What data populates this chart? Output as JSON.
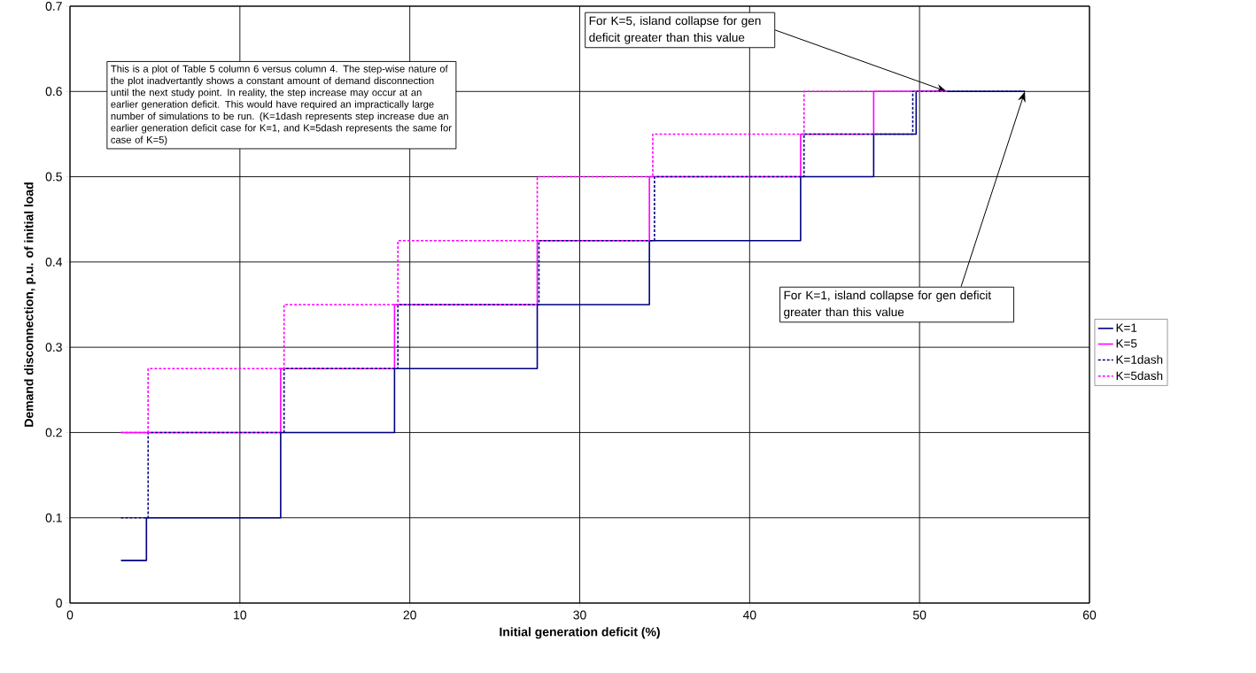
{
  "chart_data": {
    "type": "step",
    "xlabel": "Initial generation deficit (%)",
    "ylabel": "Demand disconnection, p.u. of initial load",
    "xlim": [
      0,
      60
    ],
    "ylim": [
      0,
      0.7
    ],
    "xticks": [
      0,
      10,
      20,
      30,
      40,
      50,
      60
    ],
    "yticks": [
      0,
      0.1,
      0.2,
      0.3,
      0.4,
      0.5,
      0.6,
      0.7
    ],
    "grid": true,
    "legend": "right",
    "series": [
      {
        "name": "K=1",
        "color": "#000080",
        "line_style": "solid",
        "x": [
          3.0,
          4.5,
          12.4,
          19.1,
          27.5,
          34.1,
          43.0,
          47.3,
          49.8,
          56.2
        ],
        "values": [
          0.05,
          0.1,
          0.2,
          0.275,
          0.35,
          0.425,
          0.5,
          0.55,
          0.6,
          0.6
        ]
      },
      {
        "name": "K=5",
        "color": "#ff00ff",
        "line_style": "solid",
        "x": [
          3.0,
          12.4,
          19.1,
          27.5,
          34.1,
          43.0,
          47.3,
          51.6
        ],
        "values": [
          0.2,
          0.275,
          0.35,
          0.425,
          0.5,
          0.55,
          0.6,
          0.6
        ]
      },
      {
        "name": "K=1dash",
        "color": "#000080",
        "line_style": "dotted",
        "x": [
          3.0,
          4.6,
          12.6,
          19.3,
          27.6,
          34.4,
          43.2,
          49.6,
          56.2
        ],
        "values": [
          0.1,
          0.2,
          0.275,
          0.35,
          0.425,
          0.5,
          0.55,
          0.6,
          0.6
        ]
      },
      {
        "name": "K=5dash",
        "color": "#ff00ff",
        "line_style": "dotted",
        "x": [
          3.0,
          4.6,
          12.6,
          19.3,
          27.5,
          34.3,
          43.2,
          51.6
        ],
        "values": [
          0.2,
          0.275,
          0.35,
          0.425,
          0.5,
          0.55,
          0.6,
          0.6
        ]
      }
    ],
    "annotations": [
      "This is a plot of Table 5 column 6 versus column 4. The step-wise nature of the plot inadvertantly shows a constant amount of demand disconnection until the next study point. In reality, the step increase may occur at an earlier generation deficit. This would have required an impractically large number of simulations to be run. (K=1dash represents step increase due an earlier generation deficit case for K=1, and K=5dash represents the same for case of K=5)",
      {
        "text": "For K=5, island collapse for gen deficit greater than this value",
        "x": 51.6,
        "y": 0.6
      },
      {
        "text": "For K=1, island collapse for gen deficit greater than this value",
        "x": 56.2,
        "y": 0.6
      }
    ]
  }
}
